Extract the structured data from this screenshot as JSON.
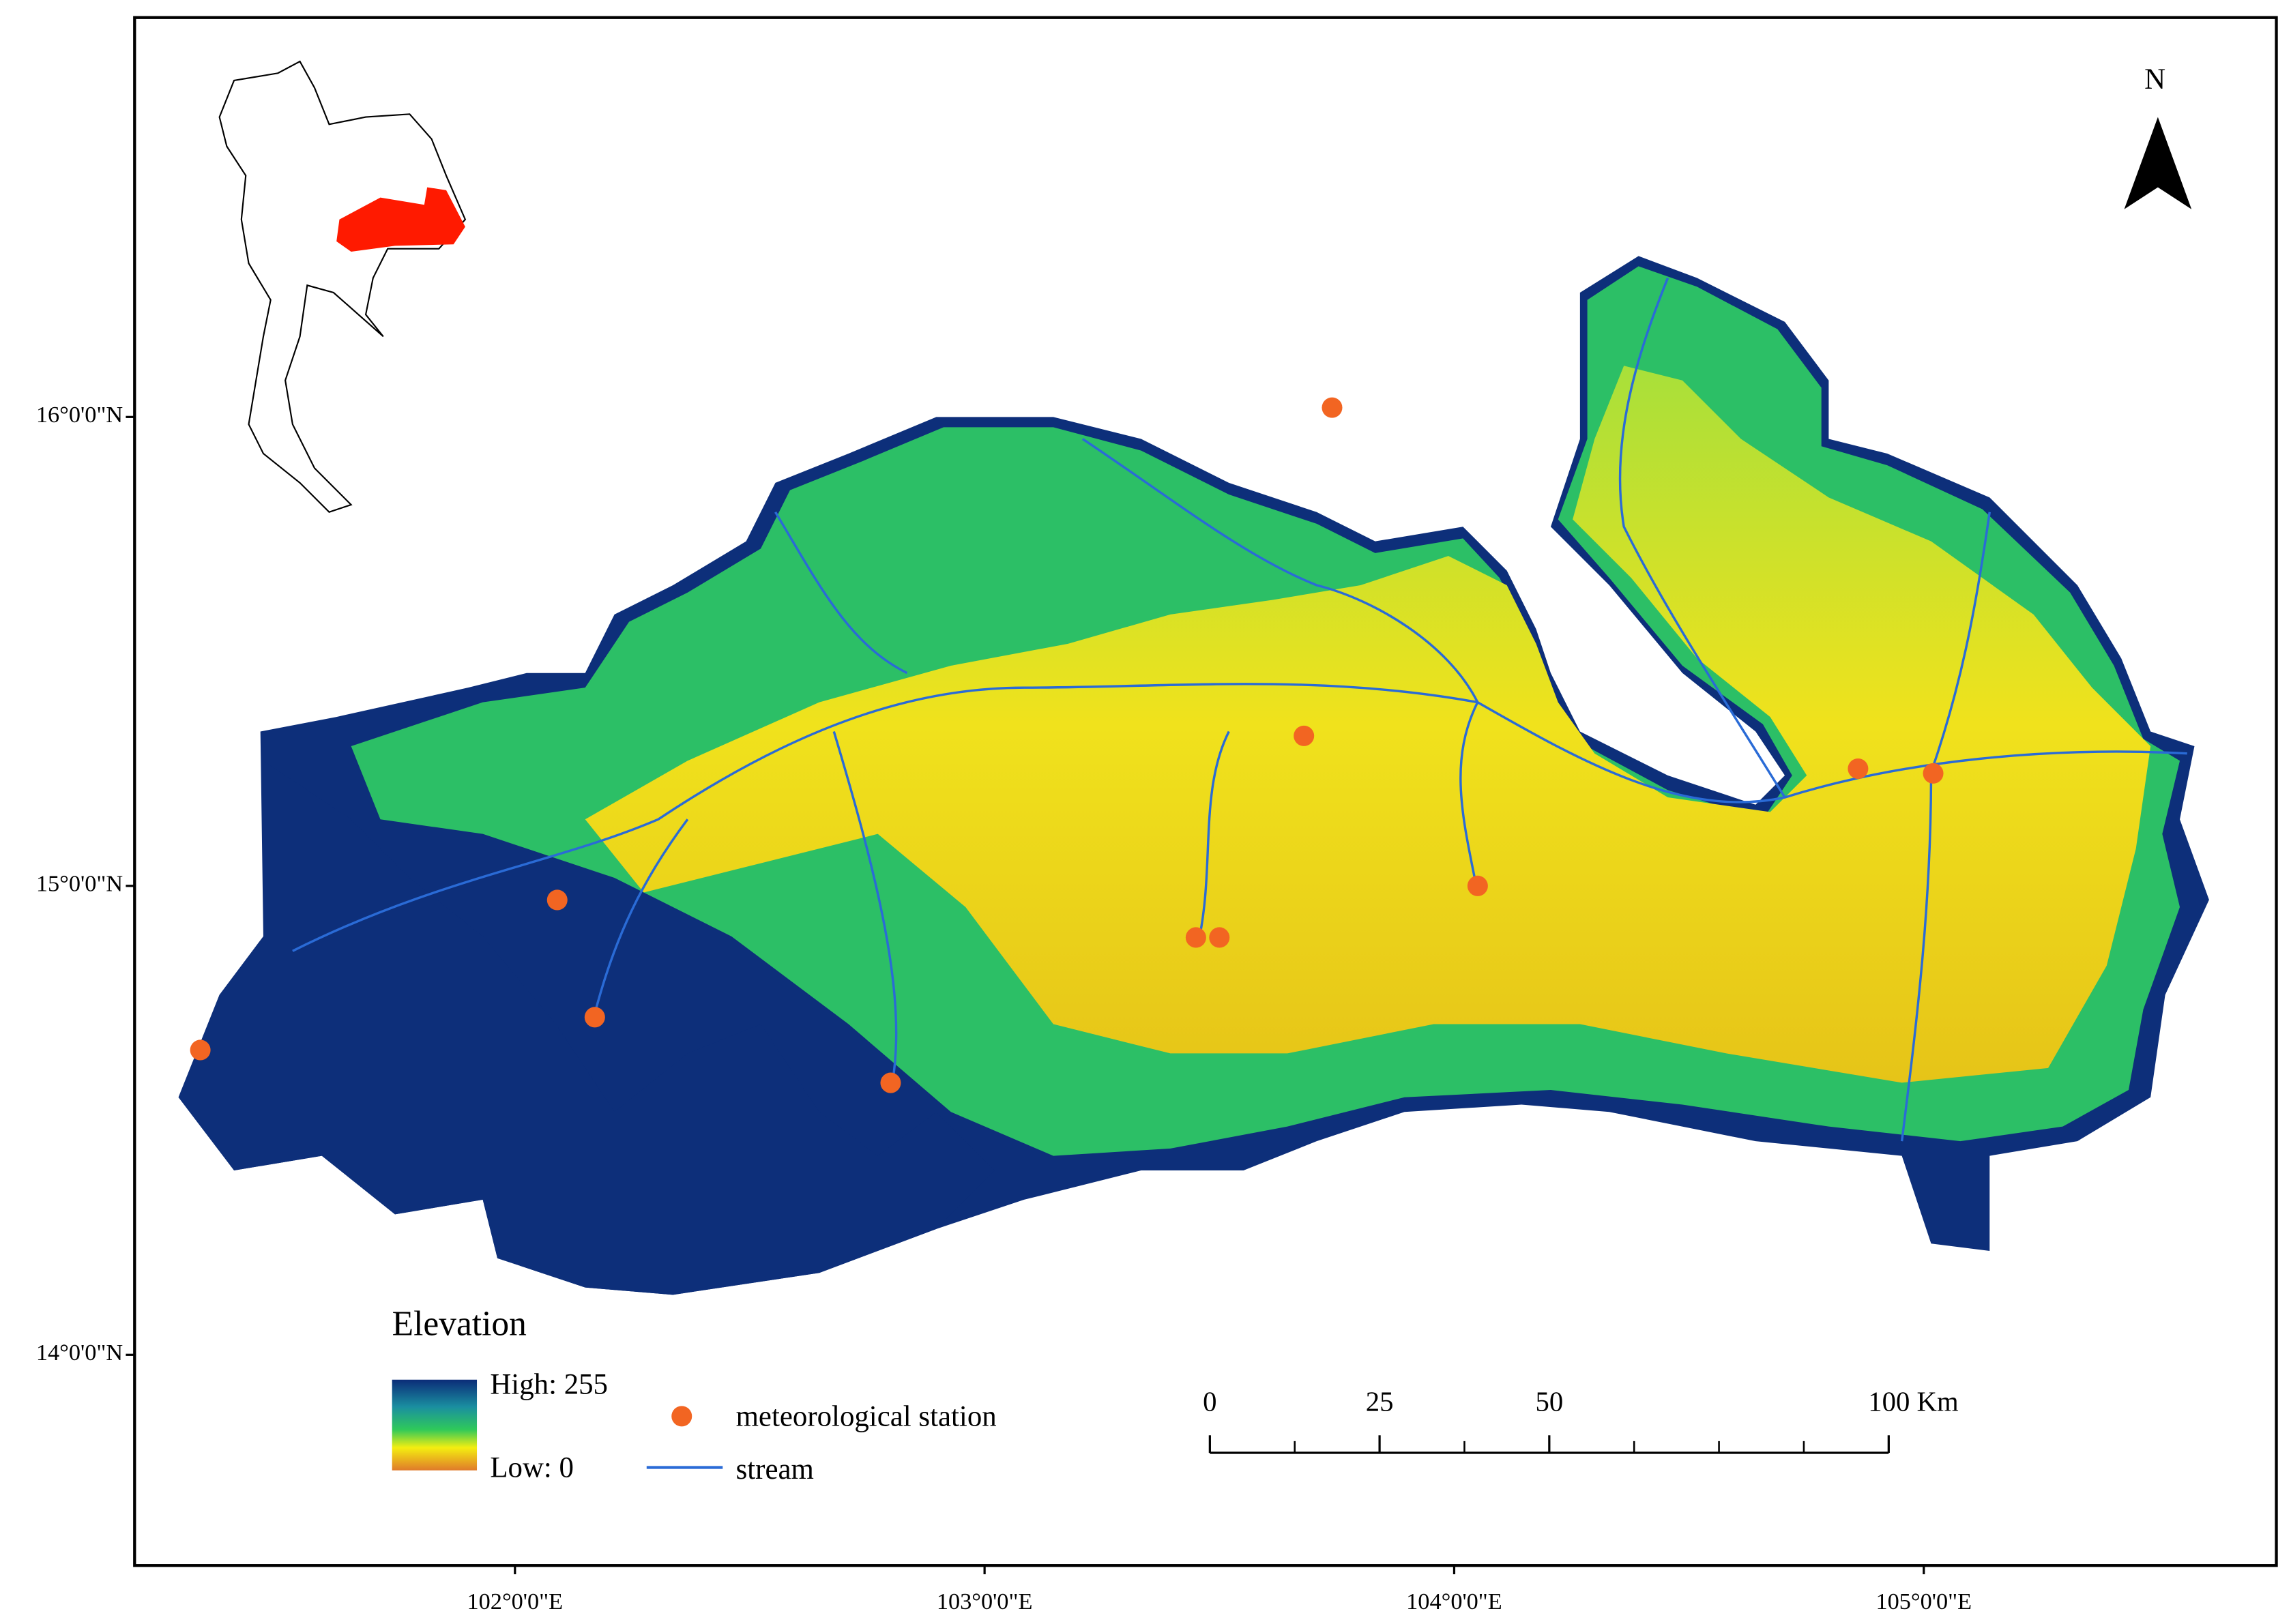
{
  "map": {
    "lat_ticks": [
      {
        "value": 16,
        "label": "16°0'0\"N"
      },
      {
        "value": 15,
        "label": "15°0'0\"N"
      },
      {
        "value": 14,
        "label": "14°0'0\"N"
      }
    ],
    "lon_ticks": [
      {
        "value": 102,
        "label": "102°0'0\"E"
      },
      {
        "value": 103,
        "label": "103°0'0\"E"
      },
      {
        "value": 104,
        "label": "104°0'0\"E"
      },
      {
        "value": 105,
        "label": "105°0'0\"E"
      }
    ],
    "north": "N",
    "stations": [
      {
        "lon": 103.74,
        "lat": 16.02
      },
      {
        "lon": 103.68,
        "lat": 15.32
      },
      {
        "lon": 102.09,
        "lat": 14.97
      },
      {
        "lon": 102.17,
        "lat": 14.72
      },
      {
        "lon": 101.33,
        "lat": 14.65
      },
      {
        "lon": 102.8,
        "lat": 14.58
      },
      {
        "lon": 103.45,
        "lat": 14.89
      },
      {
        "lon": 103.5,
        "lat": 14.89
      },
      {
        "lon": 104.05,
        "lat": 15.0
      },
      {
        "lon": 104.86,
        "lat": 15.25
      },
      {
        "lon": 105.02,
        "lat": 15.24
      }
    ]
  },
  "legend": {
    "title": "Elevation",
    "high": "High: 255",
    "low": "Low: 0",
    "station": "meteorological station",
    "stream": "stream"
  },
  "scale_bar": {
    "range": [
      0,
      100
    ],
    "ticks": [
      0,
      25,
      50,
      {
        "value": 100,
        "label": "100 Km"
      }
    ]
  }
}
